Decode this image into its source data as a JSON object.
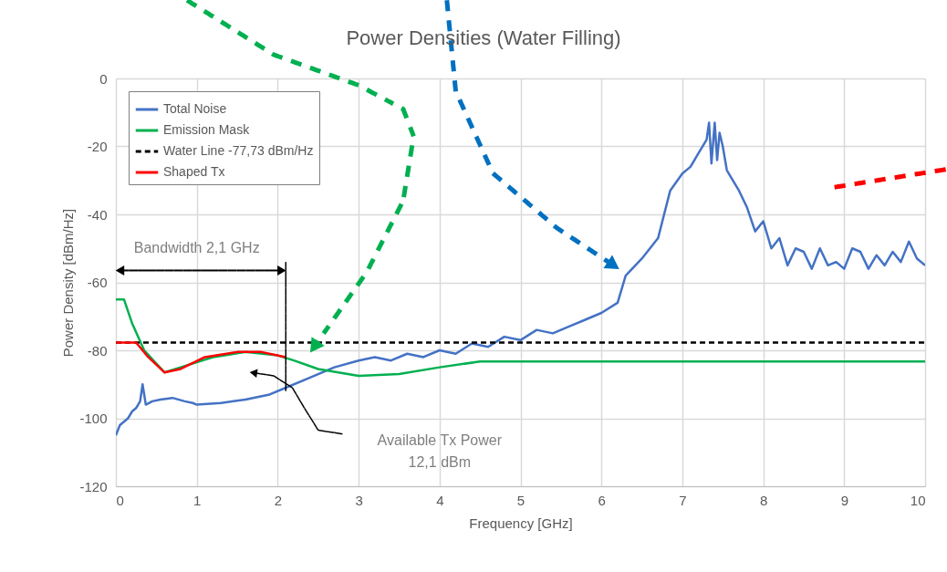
{
  "chart_data": {
    "type": "line",
    "title": "Power Densities (Water Filling)",
    "xlabel": "Frequency [GHz]",
    "ylabel": "Power Density [dBm/Hz]",
    "xlim": [
      0,
      10
    ],
    "xticks": [
      0,
      1,
      2,
      3,
      4,
      5,
      6,
      7,
      8,
      9,
      10
    ],
    "ylim": [
      -120,
      0
    ],
    "yticks": [
      -120,
      -100,
      -80,
      -60,
      -40,
      -20,
      0
    ],
    "grid": true,
    "legend": "top left",
    "marker": "none",
    "series": [
      {
        "name": "Total Noise",
        "color": "#4472c4",
        "line_style": "solid",
        "x": [
          0,
          0.05,
          0.1,
          0.15,
          0.2,
          0.25,
          0.3,
          0.33,
          0.37,
          0.45,
          0.55,
          0.7,
          0.85,
          0.95,
          1.0,
          1.3,
          1.6,
          1.9,
          2.1,
          2.4,
          2.7,
          3.0,
          3.2,
          3.4,
          3.6,
          3.8,
          4.0,
          4.2,
          4.4,
          4.6,
          4.8,
          5.0,
          5.2,
          5.4,
          5.6,
          5.8,
          6.0,
          6.2,
          6.3,
          6.5,
          6.7,
          6.85,
          7.0,
          7.1,
          7.2,
          7.3,
          7.33,
          7.36,
          7.4,
          7.43,
          7.46,
          7.5,
          7.55,
          7.6,
          7.7,
          7.8,
          7.9,
          8.0,
          8.1,
          8.2,
          8.3,
          8.4,
          8.5,
          8.6,
          8.7,
          8.8,
          8.9,
          9.0,
          9.1,
          9.2,
          9.3,
          9.4,
          9.5,
          9.6,
          9.7,
          9.8,
          9.9,
          10.0
        ],
        "values": [
          -105,
          -102,
          -101,
          -100,
          -98,
          -97,
          -95,
          -90,
          -96,
          -95,
          -94.5,
          -94,
          -95,
          -95.5,
          -96,
          -95.5,
          -94.5,
          -93,
          -91,
          -88,
          -85,
          -83,
          -82,
          -83,
          -81,
          -82,
          -80,
          -81,
          -78,
          -79,
          -76,
          -77,
          -74,
          -75,
          -73,
          -71,
          -69,
          -66,
          -58,
          -53,
          -47,
          -33,
          -28,
          -26,
          -22,
          -18,
          -13,
          -25,
          -13,
          -24,
          -16,
          -20,
          -27,
          -29,
          -33,
          -38,
          -45,
          -42,
          -50,
          -47,
          -55,
          -50,
          -51,
          -56,
          -50,
          -55,
          -54,
          -56,
          -50,
          -51,
          -56,
          -52,
          -55,
          -51,
          -54,
          -48,
          -53,
          -55
        ]
      },
      {
        "name": "Emission Mask",
        "color": "#00b050",
        "line_style": "solid",
        "x": [
          0,
          0.1,
          0.2,
          0.35,
          0.6,
          0.8,
          1.2,
          1.6,
          2.0,
          2.2,
          2.5,
          3.0,
          3.5,
          4.0,
          4.5,
          10
        ],
        "values": [
          -65,
          -65,
          -72,
          -80,
          -86.5,
          -85,
          -82,
          -80.5,
          -81.5,
          -83,
          -85.5,
          -87.5,
          -87,
          -85,
          -83.3,
          -83.3
        ]
      },
      {
        "name": "Water Line -77,73 dBm/Hz",
        "color": "#000000",
        "line_style": "dashed",
        "x": [
          0,
          10
        ],
        "values": [
          -77.73,
          -77.73
        ]
      },
      {
        "name": "Shaped Tx",
        "color": "#ff0000",
        "line_style": "solid",
        "x": [
          0,
          0.25,
          0.4,
          0.6,
          0.8,
          1.1,
          1.5,
          1.8,
          2.1
        ],
        "values": [
          -77.73,
          -77.73,
          -82,
          -86.5,
          -85.5,
          -82,
          -80.5,
          -80.5,
          -82
        ]
      }
    ],
    "annotations": [
      "Bandwidth 2,1 GHz",
      "Available Tx Power\n12,1 dBm"
    ]
  }
}
